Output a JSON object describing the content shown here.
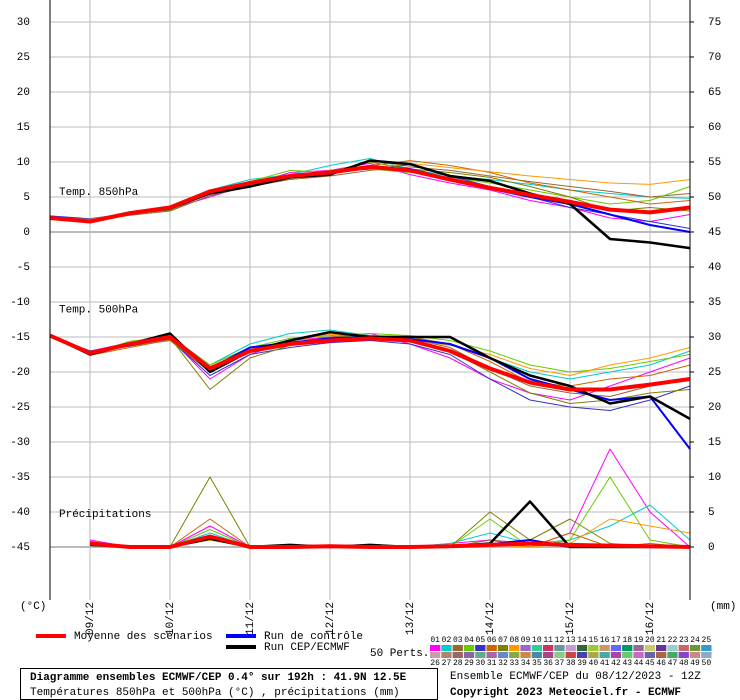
{
  "chart_data": {
    "type": "line",
    "title": "Diagramme ensembles ECMWF/CEP 0.4° sur 192h : 41.9N 12.5E",
    "subtitle": "Températures 850hPa et 500hPa (°C) , précipitations (mm)",
    "run_info": "Ensemble ECMWF/CEP du 08/12/2023 - 12Z",
    "copyright": "Copyright 2023 Meteociel.fr - ECMWF",
    "y_label": "(°C)",
    "y2_label": "(mm)",
    "grid": true,
    "x": [
      0,
      12,
      24,
      36,
      48,
      60,
      72,
      84,
      96,
      108,
      120,
      132,
      144,
      156,
      168,
      180,
      192
    ],
    "xlim": [
      0,
      192
    ],
    "xticks": [
      {
        "value": 12,
        "label": "09/12"
      },
      {
        "value": 36,
        "label": "10/12"
      },
      {
        "value": 60,
        "label": "11/12"
      },
      {
        "value": 84,
        "label": "12/12"
      },
      {
        "value": 108,
        "label": "13/12"
      },
      {
        "value": 132,
        "label": "14/12"
      },
      {
        "value": 156,
        "label": "15/12"
      },
      {
        "value": 180,
        "label": "16/12"
      }
    ],
    "ylim": [
      -52.57,
      33.14
    ],
    "yticks": [
      30,
      25,
      20,
      15,
      10,
      5,
      0,
      -5,
      -10,
      -15,
      -20,
      -25,
      -30,
      -35,
      -40,
      -45
    ],
    "y2lim": [
      -7.57,
      78.14
    ],
    "y2ticks": [
      75,
      70,
      65,
      60,
      55,
      50,
      45,
      40,
      35,
      30,
      25,
      20,
      15,
      10,
      5,
      0
    ],
    "legend": [
      {
        "name": "Moyenne des scénarios",
        "color": "#ff0000"
      },
      {
        "name": "Run de contrôle",
        "color": "#0000ff"
      },
      {
        "name": "Run CEP/ECMWF",
        "color": "#000000"
      }
    ],
    "perturbations_label": "50 Perts.",
    "perturbations": [
      {
        "name": "01",
        "color": "#ff00ff"
      },
      {
        "name": "02",
        "color": "#00cccc"
      },
      {
        "name": "03",
        "color": "#996633"
      },
      {
        "name": "04",
        "color": "#66cc00"
      },
      {
        "name": "05",
        "color": "#3333cc"
      },
      {
        "name": "06",
        "color": "#cc6600"
      },
      {
        "name": "07",
        "color": "#808000"
      },
      {
        "name": "08",
        "color": "#ff9900"
      },
      {
        "name": "09",
        "color": "#9966cc"
      },
      {
        "name": "10",
        "color": "#33cc99"
      },
      {
        "name": "11",
        "color": "#cc3366"
      },
      {
        "name": "12",
        "color": "#669999"
      },
      {
        "name": "13",
        "color": "#cc99cc"
      },
      {
        "name": "14",
        "color": "#336633"
      },
      {
        "name": "15",
        "color": "#99cc33"
      },
      {
        "name": "16",
        "color": "#cc9966"
      },
      {
        "name": "17",
        "color": "#6666ff"
      },
      {
        "name": "18",
        "color": "#009966"
      },
      {
        "name": "19",
        "color": "#996699"
      },
      {
        "name": "20",
        "color": "#cccc66"
      },
      {
        "name": "21",
        "color": "#663399"
      },
      {
        "name": "22",
        "color": "#99cccc"
      },
      {
        "name": "23",
        "color": "#cc6666"
      },
      {
        "name": "24",
        "color": "#669933"
      },
      {
        "name": "25",
        "color": "#3399cc"
      },
      {
        "name": "26",
        "color": "#cc99aa"
      },
      {
        "name": "27",
        "color": "#aa8866"
      },
      {
        "name": "28",
        "color": "#996666"
      },
      {
        "name": "29",
        "color": "#8866aa"
      },
      {
        "name": "30",
        "color": "#66aa88"
      },
      {
        "name": "31",
        "color": "#aa66aa"
      },
      {
        "name": "32",
        "color": "#6688cc"
      },
      {
        "name": "33",
        "color": "#88aa44"
      },
      {
        "name": "34",
        "color": "#cc8844"
      },
      {
        "name": "35",
        "color": "#4488aa"
      },
      {
        "name": "36",
        "color": "#aa4488"
      },
      {
        "name": "37",
        "color": "#88cc88"
      },
      {
        "name": "38",
        "color": "#cc4444"
      },
      {
        "name": "39",
        "color": "#4444aa"
      },
      {
        "name": "40",
        "color": "#aaaa44"
      },
      {
        "name": "41",
        "color": "#44aaaa"
      },
      {
        "name": "42",
        "color": "#aa44aa"
      },
      {
        "name": "43",
        "color": "#66cc66"
      },
      {
        "name": "44",
        "color": "#cc66cc"
      },
      {
        "name": "45",
        "color": "#6666aa"
      },
      {
        "name": "46",
        "color": "#aa6644"
      },
      {
        "name": "47",
        "color": "#44aa66"
      },
      {
        "name": "48",
        "color": "#8844cc"
      },
      {
        "name": "49",
        "color": "#cc8888"
      },
      {
        "name": "50",
        "color": "#88aacc"
      }
    ],
    "panels": [
      {
        "label": "Temp. 850hPa",
        "axis": "y",
        "mean": [
          2,
          1.5,
          2.7,
          3.5,
          5.8,
          7,
          8,
          8.5,
          9.3,
          8.8,
          7.5,
          6.3,
          5.3,
          4.3,
          3.2,
          2.8,
          3.5
        ],
        "control": [
          2,
          1.6,
          2.6,
          3.4,
          5.6,
          6.9,
          8,
          8.4,
          9.2,
          9,
          7.6,
          6.2,
          5,
          4,
          2.5,
          1,
          0
        ],
        "cep": [
          2,
          1.5,
          2.6,
          3.4,
          5.5,
          6.5,
          7.8,
          8.2,
          10.2,
          9.7,
          8,
          7.3,
          5.5,
          4,
          -1,
          -1.5,
          -2.3
        ],
        "members": [
          [
            2,
            1.6,
            2.8,
            3.3,
            5,
            6.8,
            8.5,
            8.8,
            9.8,
            8.2,
            7,
            6,
            4.5,
            3.5,
            2,
            1.5,
            2.5
          ],
          [
            2.2,
            1.8,
            2.6,
            3.6,
            6,
            7.5,
            8.2,
            9.5,
            10.5,
            9,
            8,
            7.5,
            6.8,
            6,
            5.5,
            5,
            4.8
          ],
          [
            1.8,
            1.5,
            2.4,
            3,
            5.2,
            6.5,
            7.5,
            8,
            8.8,
            9.3,
            8.8,
            8,
            7.2,
            6.5,
            5.8,
            5,
            5.5
          ],
          [
            2,
            1.7,
            2.9,
            3.5,
            6,
            7.2,
            8.8,
            8.5,
            9,
            8.5,
            7.8,
            7,
            6,
            5,
            4,
            4.5,
            6.5
          ],
          [
            2.3,
            1.9,
            2.7,
            3.2,
            5.5,
            7,
            7.8,
            8.5,
            9,
            9.6,
            8,
            6.5,
            5,
            3.5,
            2.5,
            1.5,
            0.5
          ],
          [
            1.9,
            1.6,
            2.5,
            3.4,
            5.8,
            6.8,
            8,
            8.8,
            9.5,
            10.2,
            9.5,
            8.5,
            7,
            6,
            5,
            4,
            4.5
          ],
          [
            2.1,
            1.7,
            2.6,
            3.1,
            5.6,
            7.2,
            8.2,
            8.6,
            10,
            9,
            8.5,
            7.8,
            6.5,
            5,
            3,
            3.5,
            3
          ],
          [
            2,
            1.8,
            2.8,
            3.5,
            5.4,
            6.6,
            7.7,
            8.3,
            9.2,
            9.8,
            9.2,
            8.6,
            8,
            7.5,
            7,
            6.8,
            7.5
          ]
        ]
      },
      {
        "label": "Temp. 500hPa",
        "axis": "y",
        "mean": [
          -14.8,
          -17.3,
          -16,
          -15,
          -19.5,
          -17,
          -16,
          -15.5,
          -15.2,
          -15.5,
          -17,
          -19.5,
          -21.5,
          -22.5,
          -22.5,
          -21.8,
          -21
        ],
        "control": [
          -14.8,
          -17.3,
          -16.2,
          -15,
          -19.5,
          -16.5,
          -15.8,
          -15.2,
          -15,
          -15.3,
          -16,
          -18,
          -21,
          -22.5,
          -24,
          -23.5,
          -31
        ],
        "cep": [
          -14.8,
          -17.5,
          -16,
          -14.5,
          -20,
          -17,
          -15.5,
          -14.3,
          -15,
          -15,
          -15,
          -18,
          -20.5,
          -22,
          -24.5,
          -23.5,
          -26.7
        ],
        "members": [
          [
            -14.8,
            -17,
            -15.8,
            -15.2,
            -21,
            -17.5,
            -15.5,
            -15,
            -14.5,
            -16,
            -18,
            -21,
            -23,
            -24,
            -22,
            -20,
            -18
          ],
          [
            -14.8,
            -17.5,
            -16,
            -14.8,
            -19,
            -16,
            -14.5,
            -14,
            -14.8,
            -15,
            -16,
            -18,
            -20,
            -21,
            -20,
            -19,
            -17
          ],
          [
            -14.8,
            -17.2,
            -16.3,
            -15.5,
            -20,
            -17,
            -16,
            -15,
            -15.5,
            -15.2,
            -16.5,
            -19.5,
            -22,
            -23,
            -23.5,
            -22,
            -21
          ],
          [
            -14.8,
            -17.4,
            -15.6,
            -15,
            -19,
            -16.5,
            -15.2,
            -14.8,
            -14.5,
            -14.8,
            -15.5,
            -17,
            -19,
            -20,
            -19.5,
            -18.5,
            -17.5
          ],
          [
            -14.8,
            -17,
            -16.2,
            -15.3,
            -20.5,
            -17.5,
            -16.5,
            -15.8,
            -15.5,
            -16,
            -17.5,
            -21,
            -24,
            -25,
            -25.5,
            -24,
            -22
          ],
          [
            -14.8,
            -17.6,
            -16.5,
            -15.4,
            -19.8,
            -17.2,
            -16,
            -15.5,
            -14.8,
            -15,
            -16,
            -18.5,
            -21.5,
            -22,
            -21,
            -20.5,
            -19
          ],
          [
            -14.8,
            -17.3,
            -16.1,
            -15.1,
            -22.5,
            -18,
            -16.2,
            -15,
            -14.8,
            -15.5,
            -17,
            -20,
            -23,
            -24.5,
            -24,
            -23,
            -22.5
          ],
          [
            -14.8,
            -17.2,
            -15.9,
            -14.9,
            -19.2,
            -16.8,
            -15.6,
            -14.6,
            -14.9,
            -15.4,
            -16.2,
            -17.5,
            -19.5,
            -20.5,
            -19,
            -18,
            -16.5
          ]
        ]
      },
      {
        "label": "Précipitations",
        "axis": "y2",
        "mean": [
          null,
          0.5,
          0,
          0,
          1.5,
          0,
          0,
          0.1,
          0,
          0,
          0.1,
          0.3,
          0.5,
          0.3,
          0.2,
          0.1,
          0
        ],
        "control": [
          null,
          0.4,
          0,
          0,
          1.2,
          0,
          0,
          0.2,
          0,
          0,
          0.2,
          0.4,
          1,
          0,
          0,
          0,
          0
        ],
        "cep": [
          null,
          0.3,
          0,
          0,
          1.2,
          0,
          0.3,
          0,
          0.3,
          0,
          0.1,
          0.5,
          6.5,
          0,
          0,
          0,
          0
        ],
        "members": [
          [
            null,
            1,
            0,
            0,
            3,
            0,
            0,
            0,
            0.3,
            0,
            0.5,
            1,
            0,
            2,
            14,
            5,
            0
          ],
          [
            null,
            0.5,
            0,
            0,
            2,
            0,
            0,
            0,
            0,
            0,
            0.5,
            2,
            0.5,
            1,
            3,
            6,
            1
          ],
          [
            null,
            0.8,
            0,
            0,
            1,
            0,
            0,
            0.3,
            0,
            0,
            0,
            1,
            0.5,
            0,
            0,
            0.5,
            0
          ],
          [
            null,
            0.5,
            0,
            0,
            2.5,
            0,
            0,
            0,
            0,
            0,
            0,
            4,
            0,
            1,
            10,
            1,
            0
          ],
          [
            null,
            0.3,
            0,
            0,
            1.5,
            0,
            0,
            0,
            0,
            0,
            0,
            0.5,
            0.5,
            0,
            0,
            0,
            0
          ],
          [
            null,
            0.6,
            0,
            0,
            4,
            0,
            0,
            0,
            0,
            0,
            0,
            0.5,
            0,
            2,
            0,
            0,
            0
          ],
          [
            null,
            0.4,
            0,
            0,
            10,
            0,
            0,
            0,
            0,
            0,
            0,
            5,
            1,
            4,
            0.5,
            0,
            0
          ],
          [
            null,
            0.5,
            0,
            0,
            1,
            0,
            0,
            0.2,
            0,
            0,
            0,
            0.3,
            0,
            0.5,
            4,
            3,
            2
          ]
        ]
      }
    ]
  }
}
